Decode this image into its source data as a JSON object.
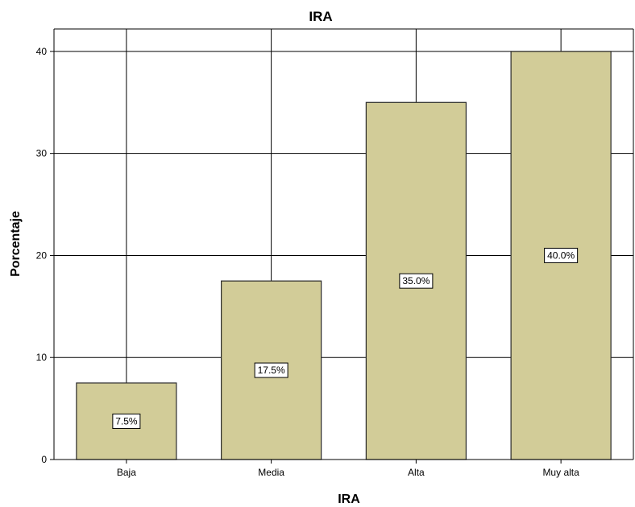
{
  "chart_data": {
    "type": "bar",
    "title": "IRA",
    "xlabel": "IRA",
    "ylabel": "Porcentaje",
    "categories": [
      "Baja",
      "Media",
      "Alta",
      "Muy alta"
    ],
    "values": [
      7.5,
      17.5,
      35.0,
      40.0
    ],
    "data_labels": [
      "7.5%",
      "17.5%",
      "35.0%",
      "40.0%"
    ],
    "ylim": [
      0,
      42.2
    ],
    "yticks": [
      0,
      10,
      20,
      30,
      40
    ],
    "ytick_labels": [
      "0",
      "10",
      "20",
      "30",
      "40"
    ],
    "grid": true,
    "legend": "none",
    "colors": {
      "bar_fill": "#D2CC98",
      "bar_stroke": "#2b2b2b",
      "label_box_fill": "#ffffff",
      "label_box_stroke": "#000000",
      "grid": "#000000",
      "background": "#ffffff"
    }
  }
}
